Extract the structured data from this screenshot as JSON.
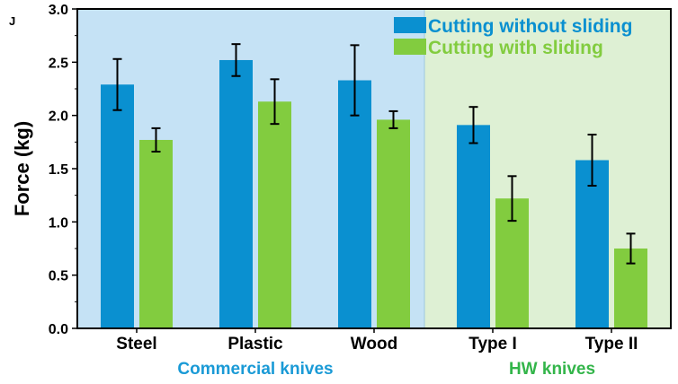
{
  "chart_data": {
    "type": "bar",
    "panel_label": "J",
    "title": "",
    "xlabel": "",
    "ylabel": "Force (kg)",
    "ylim": [
      0,
      3.0
    ],
    "yticks": [
      "0.0",
      "0.5",
      "1.0",
      "1.5",
      "2.0",
      "2.5",
      "3.0"
    ],
    "categories": [
      "Steel",
      "Plastic",
      "Wood",
      "Type I",
      "Type II"
    ],
    "series": [
      {
        "name": "Cutting without sliding",
        "color": "#0a90d0",
        "values": [
          2.29,
          2.52,
          2.33,
          1.91,
          1.58
        ],
        "errors": [
          0.24,
          0.15,
          0.33,
          0.17,
          0.24
        ]
      },
      {
        "name": "Cutting with sliding",
        "color": "#82cc3f",
        "values": [
          1.77,
          2.13,
          1.96,
          1.22,
          0.75
        ],
        "errors": [
          0.11,
          0.21,
          0.08,
          0.21,
          0.14
        ]
      }
    ],
    "groups": [
      {
        "label": "Commercial knives",
        "categories": [
          "Steel",
          "Plastic",
          "Wood"
        ],
        "background": "#c5e2f5",
        "label_color": "#1a9ad6"
      },
      {
        "label": "HW knives",
        "categories": [
          "Type I",
          "Type II"
        ],
        "background": "#def0d4",
        "label_color": "#33b54a"
      }
    ],
    "legend_placement": "top-right"
  }
}
